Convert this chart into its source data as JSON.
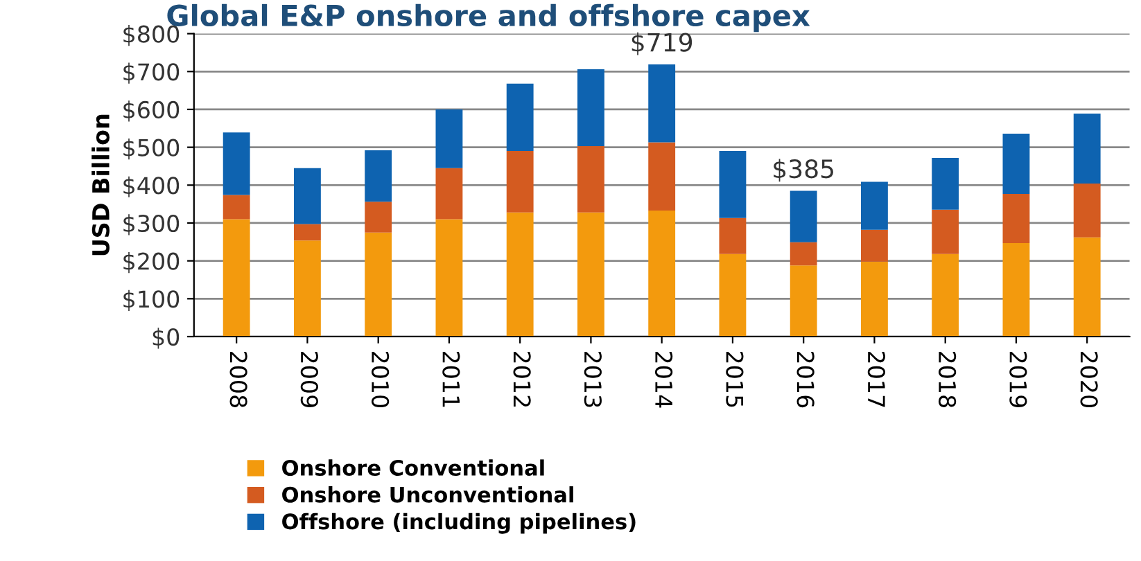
{
  "chart_data": {
    "type": "bar",
    "stacked": true,
    "title": "Global E&P onshore and offshore capex",
    "ylabel": "USD Billion",
    "categories": [
      "2008",
      "2009",
      "2010",
      "2011",
      "2012",
      "2013",
      "2014",
      "2015",
      "2016",
      "2017",
      "2018",
      "2019",
      "2020"
    ],
    "series": [
      {
        "name": "Onshore Conventional",
        "color": "#f39a0d",
        "values": [
          310,
          254,
          275,
          310,
          328,
          328,
          333,
          218,
          188,
          198,
          218,
          247,
          262
        ]
      },
      {
        "name": "Onshore Unconventional",
        "color": "#d45b20",
        "values": [
          64,
          43,
          81,
          135,
          162,
          175,
          180,
          95,
          61,
          84,
          117,
          130,
          142
        ]
      },
      {
        "name": "Offshore (including pipelines)",
        "color": "#0e63b0",
        "values": [
          165,
          148,
          136,
          155,
          178,
          203,
          206,
          177,
          136,
          127,
          137,
          159,
          185
        ]
      }
    ],
    "annotations": [
      {
        "text": "$719",
        "x": "2014",
        "y": 719
      },
      {
        "text": "$385",
        "x": "2016",
        "y": 385
      }
    ],
    "ylim": [
      0,
      800
    ],
    "yticks": [
      {
        "value": 0,
        "label": "$0"
      },
      {
        "value": 100,
        "label": "$100"
      },
      {
        "value": 200,
        "label": "$200"
      },
      {
        "value": 300,
        "label": "$300"
      },
      {
        "value": 400,
        "label": "$400"
      },
      {
        "value": 500,
        "label": "$500"
      },
      {
        "value": 600,
        "label": "$600"
      },
      {
        "value": 700,
        "label": "$700"
      },
      {
        "value": 800,
        "label": "$800"
      }
    ],
    "grid": "y",
    "legend": "bottom"
  }
}
